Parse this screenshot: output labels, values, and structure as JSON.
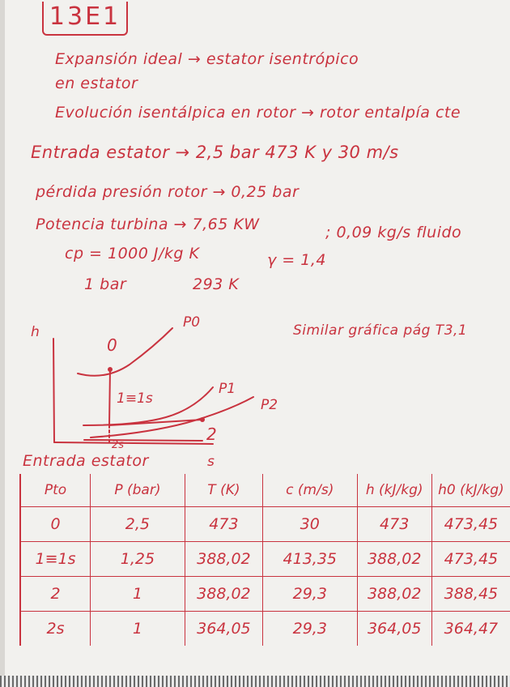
{
  "title": "13E1",
  "statement": {
    "line1": "Expansión ideal → estator isentrópico",
    "line2": "en estator",
    "line3": "Evolución isentálpica en rotor → rotor entalpía cte",
    "line4": "Entrada estator → 2,5 bar   473 K y 30 m/s",
    "line5": "pérdida presión rotor → 0,25 bar",
    "line6": "Potencia turbina → 7,65 KW",
    "line6b": "; 0,09 kg/s fluido",
    "line7": "cp = 1000 J/kg K",
    "line7b": "γ = 1,4",
    "line8a": "1 bar",
    "line8b": "293 K"
  },
  "diagram": {
    "y_axis": "h",
    "x_axis": "s",
    "curves": [
      "P0",
      "P1",
      "P2"
    ],
    "points": [
      "0",
      "1≡1s",
      "2",
      "2s"
    ],
    "note": "Similar gráfica pág T3,1"
  },
  "table": {
    "caption": "Entrada estator",
    "headers": [
      "Pto",
      "P (bar)",
      "T (K)",
      "c (m/s)",
      "h (kJ/kg)",
      "h0 (kJ/kg)"
    ],
    "rows": [
      [
        "0",
        "2,5",
        "473",
        "30",
        "473",
        "473,45"
      ],
      [
        "1≡1s",
        "1,25",
        "388,02",
        "413,35",
        "388,02",
        "473,45"
      ],
      [
        "2",
        "1",
        "388,02",
        "29,3",
        "388,02",
        "388,45"
      ],
      [
        "2s",
        "1",
        "364,05",
        "29,3",
        "364,05",
        "364,47"
      ]
    ]
  },
  "colors": {
    "ink": "#c9333f",
    "paper": "#f2f1ee"
  }
}
